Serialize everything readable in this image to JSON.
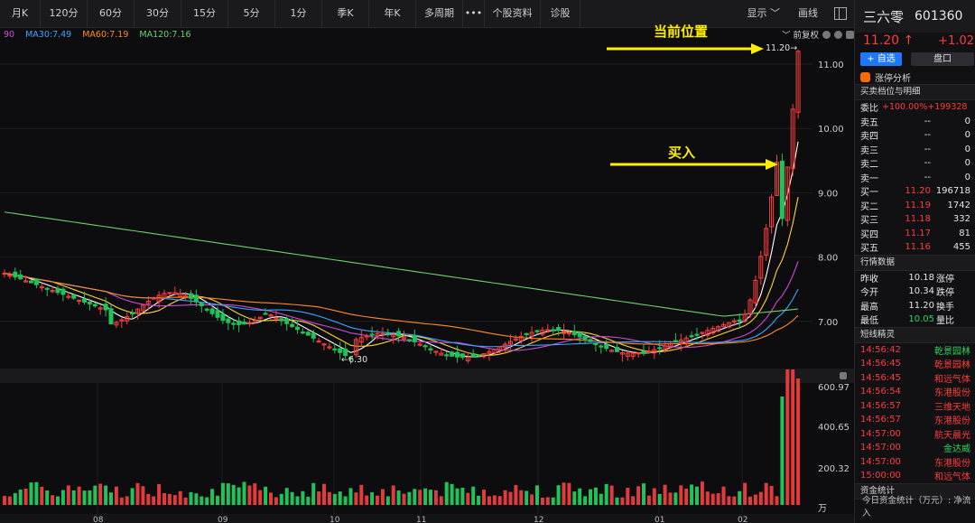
{
  "toolbar": {
    "items": [
      "月K",
      "120分",
      "60分",
      "30分",
      "15分",
      "5分",
      "1分",
      "季K",
      "年K",
      "多周期",
      "•••",
      "个股资料",
      "诊股"
    ],
    "display_label": "显示",
    "draw_label": "画线"
  },
  "ma_legend": [
    {
      "label": "90",
      "color": "#d04ad8"
    },
    {
      "label": "MA30:7.49",
      "color": "#3aa6ff"
    },
    {
      "label": "MA60:7.19",
      "color": "#ff8a2a"
    },
    {
      "label": "MA120:7.16",
      "color": "#6ad36a"
    }
  ],
  "controls": {
    "adjust_label": "前复权"
  },
  "chart": {
    "price_axis": [
      "11.00",
      "10.00",
      "9.00",
      "8.00",
      "7.00"
    ],
    "volume_axis": [
      "600.97",
      "400.65",
      "200.32",
      "万"
    ],
    "date_labels": [
      "08",
      "09",
      "10",
      "11",
      "12",
      "01",
      "02"
    ],
    "high_label": "11.20→",
    "low_label": "←6.30",
    "annotation_current": "当前位置",
    "annotation_buy": "买入"
  },
  "stock": {
    "name": "三六零",
    "code": "601360",
    "price": "11.20 ↑",
    "change": "+1.02"
  },
  "buttons": {
    "add_watch": "+ 自选",
    "pankou": "盘口"
  },
  "limit_analysis": "涨停分析",
  "orderbook": {
    "title": "买卖档位与明细",
    "weibi_label": "委比",
    "weibi_value": "+100.00%+199328",
    "sells": [
      {
        "label": "卖五",
        "price": "--",
        "vol": "0"
      },
      {
        "label": "卖四",
        "price": "--",
        "vol": "0"
      },
      {
        "label": "卖三",
        "price": "--",
        "vol": "0"
      },
      {
        "label": "卖二",
        "price": "--",
        "vol": "0"
      },
      {
        "label": "卖一",
        "price": "--",
        "vol": "0"
      }
    ],
    "buys": [
      {
        "label": "买一",
        "price": "11.20",
        "vol": "196718"
      },
      {
        "label": "买二",
        "price": "11.19",
        "vol": "1742"
      },
      {
        "label": "买三",
        "price": "11.18",
        "vol": "332"
      },
      {
        "label": "买四",
        "price": "11.17",
        "vol": "81"
      },
      {
        "label": "买五",
        "price": "11.16",
        "vol": "455"
      }
    ]
  },
  "quote": {
    "title": "行情数据",
    "rows": [
      {
        "label": "昨收",
        "value": "10.18",
        "extra": "涨停"
      },
      {
        "label": "今开",
        "value": "10.34",
        "extra": "跌停"
      },
      {
        "label": "最高",
        "value": "11.20",
        "extra": "换手"
      },
      {
        "label": "最低",
        "value": "10.05",
        "extra": "量比"
      }
    ]
  },
  "sprite": {
    "title": "短线精灵",
    "rows": [
      {
        "time": "14:56:42",
        "name": "乾景园林",
        "color": "green"
      },
      {
        "time": "14:56:45",
        "name": "乾景园林",
        "color": "red"
      },
      {
        "time": "14:56:45",
        "name": "和远气体",
        "color": "red"
      },
      {
        "time": "14:56:54",
        "name": "东港股份",
        "color": "red"
      },
      {
        "time": "14:56:57",
        "name": "三维天地",
        "color": "red"
      },
      {
        "time": "14:56:57",
        "name": "东港股份",
        "color": "red"
      },
      {
        "time": "14:57:00",
        "name": "航天晨光",
        "color": "red"
      },
      {
        "time": "14:57:00",
        "name": "金达威",
        "color": "green"
      },
      {
        "time": "14:57:00",
        "name": "东港股份",
        "color": "red"
      },
      {
        "time": "15:00:00",
        "name": "和远气体",
        "color": "red"
      }
    ]
  },
  "fund": {
    "title": "资金统计",
    "text": "今日资金统计（万元）: 净流入"
  }
}
